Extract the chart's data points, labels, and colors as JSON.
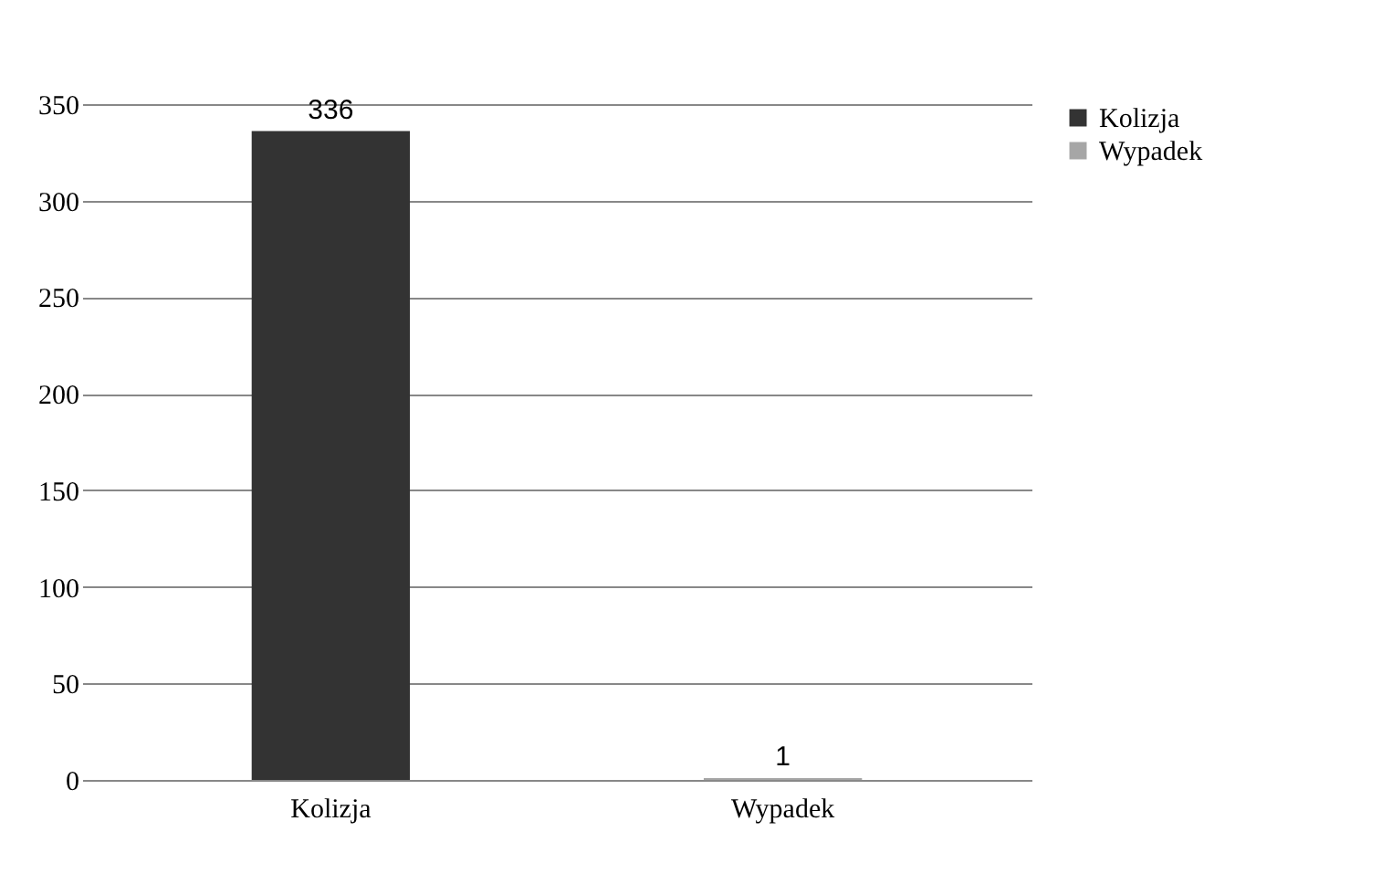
{
  "chart_data": {
    "type": "bar",
    "categories": [
      "Kolizja",
      "Wypadek"
    ],
    "series": [
      {
        "name": "Kolizja",
        "color": "#333333",
        "values": [
          336,
          null
        ]
      },
      {
        "name": "Wypadek",
        "color": "#a6a6a6",
        "values": [
          null,
          1
        ]
      }
    ],
    "ylim": [
      0,
      350
    ],
    "yticks": [
      0,
      50,
      100,
      150,
      200,
      250,
      300,
      350
    ],
    "grid": "y",
    "legend": "right",
    "data_labels": true
  }
}
